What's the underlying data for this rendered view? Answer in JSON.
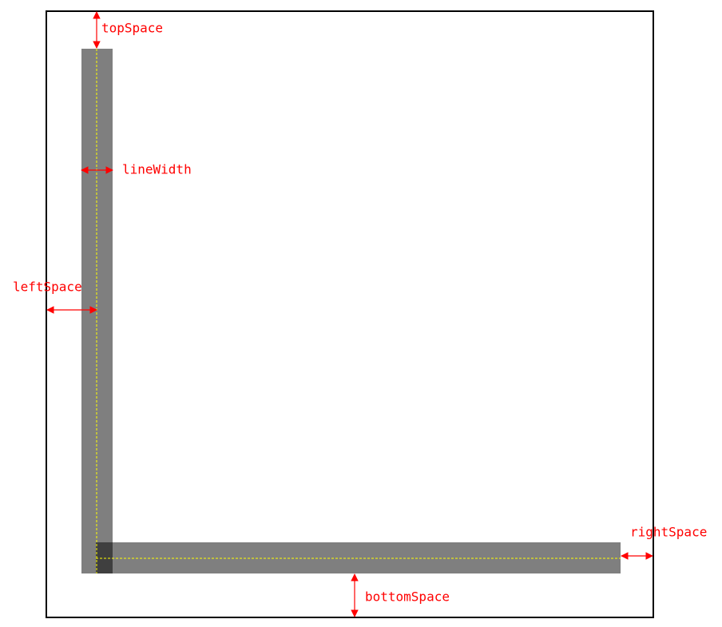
{
  "labels": {
    "top": "topSpace",
    "line_width": "lineWidth",
    "left": "leftSpace",
    "right": "rightSpace",
    "bottom": "bottomSpace"
  }
}
